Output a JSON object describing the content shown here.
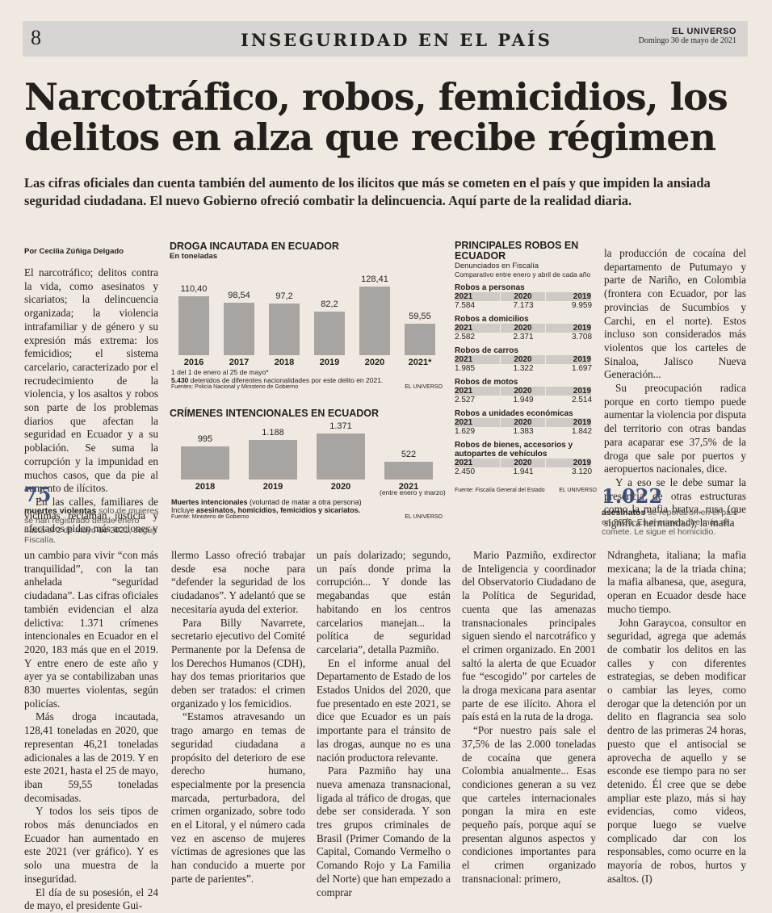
{
  "header": {
    "page_number": "8",
    "section": "INSEGURIDAD EN EL PAÍS",
    "paper_name": "EL UNIVERSO",
    "date": "Domingo 30 de mayo de 2021"
  },
  "headline": "Narcotráfico, robos, femicidios, los delitos en alza que recibe régimen",
  "deck": "Las cifras oficiales dan cuenta también del aumento de los ilícitos que más se cometen en el país y que impiden la ansiada seguridad ciudadana. El nuevo Gobierno ofreció combatir la delincuencia. Aquí parte de la realidad diaria.",
  "byline": "Por Cecilia Zúñiga Delgado",
  "col1_top": [
    "El narcotráfico; delitos contra la vida, como asesinatos y sicariatos; la delincuencia organizada; la violencia intrafamiliar y de género y su expresión más extrema: los femicidios; el sistema carcelario, caracterizado por el recrudecimiento de la violencia, y los asaltos y robos son parte de los problemas diarios que afectan la seguridad en Ecuador y a su población. Se suma la corrupción y la impunidad en muchos casos, que da pie al aumento de ilícitos.",
    "En las calles, familiares de víctimas reclaman justicia y afectados piden más acciones y"
  ],
  "pull_left": {
    "number": "75",
    "bold": "muertes violentas",
    "text": " solo de mujeres se han registrado desde enero hasta el 2 de mayo de 2021, según Fiscalía."
  },
  "pull_right": {
    "number": "1.022",
    "bold": "asesinatos",
    "text": " se reportaron en el país en 2020. Es el crimen que más se comete. Le sigue el homicidio."
  },
  "col_right_top": [
    "la producción de cocaína del departamento de Putumayo y parte de Nariño, en Colombia (frontera con Ecuador, por las provincias de Sucumbíos y Carchi, en el norte). Estos incluso son considerados más violentos que los carteles de Sinaloa, Jalisco Nueva Generación...",
    "Su preocupación radica porque en corto tiempo puede aumentar la violencia por disputa del territorio con otras bandas para acaparar ese 37,5% de la droga que sale por puertos y aeropuertos nacionales, dice.",
    "Y a eso se le debe sumar la presencia de otras estructuras como la mafia bratva, rusa (que significa hermandad); la mafia"
  ],
  "chart_drug": {
    "title": "DROGA INCAUTADA EN ECUADOR",
    "subtitle": "En toneladas",
    "note_star": "1 del 1 de enero al 25 de mayo*",
    "note_bold": "5.430",
    "note_text": " detenidos de diferentes nacionalidades por este delito en 2021.",
    "source": "Fuentes: Policía Nacional y Ministerio de Gobierno",
    "credit": "EL UNIVERSO"
  },
  "chart_crime": {
    "title": "CRÍMENES INTENCIONALES EN ECUADOR",
    "note_2021": "(entre enero y marzo)",
    "legend_bold": "Muertes intencionales",
    "legend_text": " (voluntad de matar a otra persona)",
    "legend_line2_pre": "Incluye ",
    "legend_line2_bold": "asesinatos, homicidios, femicidios y sicariatos.",
    "source": "Fuente: Ministerio de Gobierno",
    "credit": "EL UNIVERSO"
  },
  "chart_data": [
    {
      "type": "bar",
      "title": "DROGA INCAUTADA EN ECUADOR",
      "ylabel": "En toneladas",
      "categories": [
        "2016",
        "2017",
        "2018",
        "2019",
        "2020",
        "2021*"
      ],
      "values": [
        110.4,
        98.54,
        97.2,
        82.2,
        128.41,
        59.55
      ],
      "value_labels": [
        "110,40",
        "98,54",
        "97,2",
        "82,2",
        "128,41",
        "59,55"
      ]
    },
    {
      "type": "bar",
      "title": "CRÍMENES INTENCIONALES EN ECUADOR",
      "categories": [
        "2018",
        "2019",
        "2020",
        "2021"
      ],
      "values": [
        995,
        1188,
        1371,
        522
      ],
      "value_labels": [
        "995",
        "1.188",
        "1.371",
        "522"
      ]
    },
    {
      "type": "table",
      "title": "PRINCIPALES ROBOS EN ECUADOR",
      "subtitle": "Denunciados en Fiscalía",
      "subtitle2": "Comparativo entre enero y abril de cada año",
      "years": [
        "2021",
        "2020",
        "2019"
      ],
      "rows": [
        {
          "name": "Robos a personas",
          "values": [
            "7.584",
            "7.173",
            "9.959"
          ]
        },
        {
          "name": "Robos a domicilios",
          "values": [
            "2.582",
            "2.371",
            "3.708"
          ]
        },
        {
          "name": "Robos de carros",
          "values": [
            "1.985",
            "1.322",
            "1.697"
          ]
        },
        {
          "name": "Robos de motos",
          "values": [
            "2.527",
            "1.949",
            "2.514"
          ]
        },
        {
          "name": "Robos a unidades económicas",
          "values": [
            "1.629",
            "1.383",
            "1.842"
          ]
        },
        {
          "name": "Robos de bienes, accesorios y autopartes de vehículos",
          "values": [
            "2.450",
            "1.941",
            "3.120"
          ]
        }
      ],
      "source": "Fuente: Fiscalía General del Estado",
      "credit": "EL UNIVERSO"
    }
  ],
  "bottom_cols": [
    [
      "un cambio para vivir “con más tranquilidad”, con la tan anhelada “seguridad ciudadana”. Las cifras oficiales también evidencian el alza delictiva: 1.371 crímenes intencionales en Ecuador en el 2020, 183 más que en el 2019. Y entre enero de este año y ayer ya se contabilizaban unas 830 muertes violentas, según policías.",
      "Más droga incautada, 128,41 toneladas en 2020, que representan 46,21 toneladas adicionales a las de 2019. Y en este 2021, hasta el 25 de mayo, iban 59,55 toneladas decomisadas.",
      "Y todos los seis tipos de robos más denunciados en Ecuador han aumentado en este 2021 (ver gráfico). Y es solo una muestra de la inseguridad.",
      "El día de su posesión, el 24 de mayo, el presidente Gui-"
    ],
    [
      "llermo Lasso ofreció trabajar desde esa noche para “defender la seguridad de los ciudadanos”. Y adelantó que se necesitaría ayuda del exterior.",
      "Para Billy Navarrete, secretario ejecutivo del Comité Permanente por la Defensa de los Derechos Humanos (CDH), hay dos temas prioritarios que deben ser tratados: el crimen organizado y los femicidios.",
      "“Estamos atravesando un trago amargo en temas de seguridad ciudadana a propósito del deterioro de ese derecho humano, especialmente por la presencia marcada, perturbadora, del crimen organizado, sobre todo en el Litoral, y el número cada vez en ascenso de mujeres víctimas de agresiones que las han conducido a muerte por parte de parientes”."
    ],
    [
      "un país dolarizado; segundo, un país donde prima la corrupción... Y donde las megabandas que están habitando en los centros carcelarios manejan... la política de seguridad carcelaria”, detalla Pazmiño.",
      "En el informe anual del Departamento de Estado de los Estados Unidos del 2020, que fue presentado en este 2021, se dice que Ecuador es un país importante para el tránsito de las drogas, aunque no es una nación productora relevante.",
      "Para Pazmiño hay una nueva amenaza transnacional, ligada al tráfico de drogas, que debe ser considerada. Y son tres grupos criminales de Brasil (Primer Comando de la Capital, Comando Vermelho o Comando Rojo y La Familia del Norte) que han empezado a comprar"
    ],
    [
      "Mario Pazmiño, exdirector de Inteligencia y coordinador del Observatorio Ciudadano de la Política de Seguridad, cuenta que las amenazas transnacionales principales siguen siendo el narcotráfico y el crimen organizado. En 2001 saltó la alerta de que Ecuador fue “escogido” por carteles de la droga mexicana para asentar parte de ese ilícito. Ahora el país está en la ruta de la droga.",
      "“Por nuestro país sale el 37,5% de las 2.000 toneladas de cocaína que genera Colombia anualmente... Esas condiciones generan a su vez que carteles internacionales pongan la mira en este pequeño país, porque aquí se presentan algunos aspectos y condiciones importantes para el crimen organizado transnacional: primero,"
    ],
    [
      "Ndrangheta, italiana; la mafia mexicana; la de la triada china; la mafia albanesa, que, asegura, operan en Ecuador desde hace mucho tiempo.",
      "John Garaycoa, consultor en seguridad, agrega que además de combatir los delitos en las calles y con diferentes estrategias, se deben modificar o cambiar las leyes, como derogar que la detención por un delito en flagrancia sea solo dentro de las primeras 24 horas, puesto que el antisocial se aprovecha de aquello y se esconde ese tiempo para no ser detenido. Él cree que se debe ampliar este plazo, más si hay evidencias, como videos, porque luego se vuelve complicado dar con los responsables, como ocurre en la mayoría de robos, hurtos y asaltos. (I)"
    ]
  ]
}
